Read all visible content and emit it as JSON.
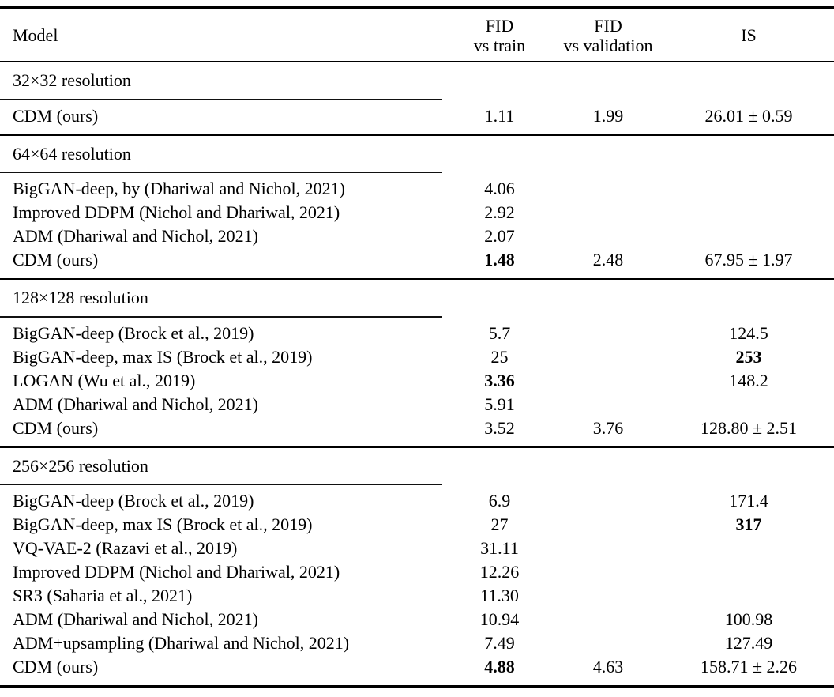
{
  "colors": {
    "background": "#ffffff",
    "text": "#000000",
    "rule": "#000000"
  },
  "header": {
    "model": "Model",
    "fid_train": {
      "line1": "FID",
      "line2": "vs train"
    },
    "fid_validation": {
      "line1": "FID",
      "line2": "vs validation"
    },
    "is": "IS"
  },
  "sections": [
    {
      "title": "32×32 resolution",
      "rows": [
        {
          "model": "CDM (ours)",
          "fid_train": "1.11",
          "fid_validation": "1.99",
          "is": "26.01 ± 0.59"
        }
      ]
    },
    {
      "title": "64×64 resolution",
      "rows": [
        {
          "model": "BigGAN-deep, by (Dhariwal and Nichol, 2021)",
          "fid_train": "4.06",
          "fid_validation": "",
          "is": ""
        },
        {
          "model": "Improved DDPM (Nichol and Dhariwal, 2021)",
          "fid_train": "2.92",
          "fid_validation": "",
          "is": ""
        },
        {
          "model": "ADM (Dhariwal and Nichol, 2021)",
          "fid_train": "2.07",
          "fid_validation": "",
          "is": ""
        },
        {
          "model": "CDM (ours)",
          "fid_train": "1.48",
          "fid_train_bold": true,
          "fid_validation": "2.48",
          "is": "67.95 ± 1.97"
        }
      ]
    },
    {
      "title": "128×128 resolution",
      "rows": [
        {
          "model": "BigGAN-deep (Brock et al., 2019)",
          "fid_train": "5.7",
          "fid_validation": "",
          "is": "124.5"
        },
        {
          "model": "BigGAN-deep, max IS (Brock et al., 2019)",
          "fid_train": "25",
          "fid_validation": "",
          "is": "253",
          "is_bold": true
        },
        {
          "model": "LOGAN (Wu et al., 2019)",
          "fid_train": "3.36",
          "fid_train_bold": true,
          "fid_validation": "",
          "is": "148.2"
        },
        {
          "model": "ADM (Dhariwal and Nichol, 2021)",
          "fid_train": "5.91",
          "fid_validation": "",
          "is": ""
        },
        {
          "model": "CDM (ours)",
          "fid_train": "3.52",
          "fid_validation": "3.76",
          "is": "128.80 ± 2.51"
        }
      ]
    },
    {
      "title": "256×256 resolution",
      "rows": [
        {
          "model": "BigGAN-deep (Brock et al., 2019)",
          "fid_train": "6.9",
          "fid_validation": "",
          "is": "171.4"
        },
        {
          "model": "BigGAN-deep, max IS (Brock et al., 2019)",
          "fid_train": "27",
          "fid_validation": "",
          "is": "317",
          "is_bold": true
        },
        {
          "model": "VQ-VAE-2 (Razavi et al., 2019)",
          "fid_train": "31.11",
          "fid_validation": "",
          "is": ""
        },
        {
          "model": "Improved DDPM (Nichol and Dhariwal, 2021)",
          "fid_train": "12.26",
          "fid_validation": "",
          "is": ""
        },
        {
          "model": "SR3 (Saharia et al., 2021)",
          "fid_train": "11.30",
          "fid_validation": "",
          "is": ""
        },
        {
          "model": "ADM (Dhariwal and Nichol, 2021)",
          "fid_train": "10.94",
          "fid_validation": "",
          "is": "100.98"
        },
        {
          "model": "ADM+upsampling (Dhariwal and Nichol, 2021)",
          "fid_train": "7.49",
          "fid_validation": "",
          "is": "127.49"
        },
        {
          "model": "CDM (ours)",
          "fid_train": "4.88",
          "fid_train_bold": true,
          "fid_validation": "4.63",
          "is": "158.71 ± 2.26"
        }
      ]
    }
  ]
}
